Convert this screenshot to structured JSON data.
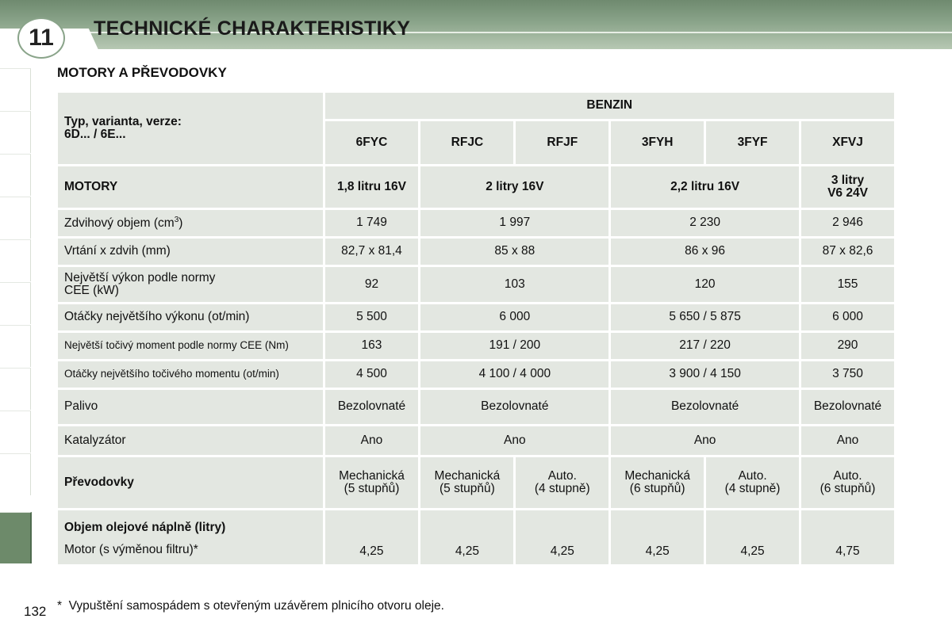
{
  "header": {
    "chapter_number": "11",
    "chapter_title": "TECHNICKÉ CHARAKTERISTIKY"
  },
  "section": {
    "title": "MOTORY A PŘEVODOVKY"
  },
  "table": {
    "type_label_line1": "Typ, varianta, verze:",
    "type_label_line2": "6D... / 6E...",
    "fuel_group": "BENZIN",
    "codes": [
      "6FYC",
      "RFJC",
      "RFJF",
      "3FYH",
      "3FYF",
      "XFVJ"
    ],
    "motors_label": "MOTORY",
    "motors": {
      "a": "1,8 litru 16V",
      "b": "2 litry 16V",
      "c": "2,2 litru 16V",
      "d_line1": "3 litry",
      "d_line2": "V6 24V"
    },
    "displacement_label": "Zdvihový objem (cm",
    "displacement_sup": "3",
    "displacement_tail": ")",
    "displacement": [
      "1 749",
      "1 997",
      "2 230",
      "2 946"
    ],
    "bore_label": "Vrtání x zdvih (mm)",
    "bore": [
      "82,7 x 81,4",
      "85 x 88",
      "86 x 96",
      "87 x 82,6"
    ],
    "power_label_line1": "Největší výkon podle normy",
    "power_label_line2": "CEE (kW)",
    "power": [
      "92",
      "103",
      "120",
      "155"
    ],
    "power_rpm_label": "Otáčky největšího výkonu (ot/min)",
    "power_rpm": [
      "5 500",
      "6 000",
      "5 650 / 5 875",
      "6 000"
    ],
    "torque_label": "Největší točivý moment podle normy CEE (Nm)",
    "torque": [
      "163",
      "191 / 200",
      "217 / 220",
      "290"
    ],
    "torque_rpm_label": "Otáčky největšího točivého momentu (ot/min)",
    "torque_rpm": [
      "4 500",
      "4 100 / 4 000",
      "3 900 / 4 150",
      "3 750"
    ],
    "fuel_label": "Palivo",
    "fuel": [
      "Bezolovnaté",
      "Bezolovnaté",
      "Bezolovnaté",
      "Bezolovnaté"
    ],
    "catalyst_label": "Katalyzátor",
    "catalyst": [
      "Ano",
      "Ano",
      "Ano",
      "Ano"
    ],
    "gearbox_label": "Převodovky",
    "gearbox": [
      {
        "l1": "Mechanická",
        "l2": "(5 stupňů)"
      },
      {
        "l1": "Mechanická",
        "l2": "(5 stupňů)"
      },
      {
        "l1": "Auto.",
        "l2": "(4 stupně)"
      },
      {
        "l1": "Mechanická",
        "l2": "(6 stupňů)"
      },
      {
        "l1": "Auto.",
        "l2": "(4 stupně)"
      },
      {
        "l1": "Auto.",
        "l2": "(6 stupňů)"
      }
    ],
    "oil_label": "Objem olejové náplně (litry)",
    "oil_motor_label": "Motor (s výměnou filtru)*",
    "oil": [
      "4,25",
      "4,25",
      "4,25",
      "4,25",
      "4,25",
      "4,75"
    ]
  },
  "footnote": {
    "mark": "*",
    "text": "Vypuštění samospádem s otevřeným uzávěrem plnicího otvoru oleje."
  },
  "page": {
    "number": "132"
  },
  "colors": {
    "header_green": "#8aa48a",
    "cell_bg": "#e3e7e1",
    "header_cell_bg": "#cfd8cc",
    "active_tab": "#6d8a6a"
  }
}
